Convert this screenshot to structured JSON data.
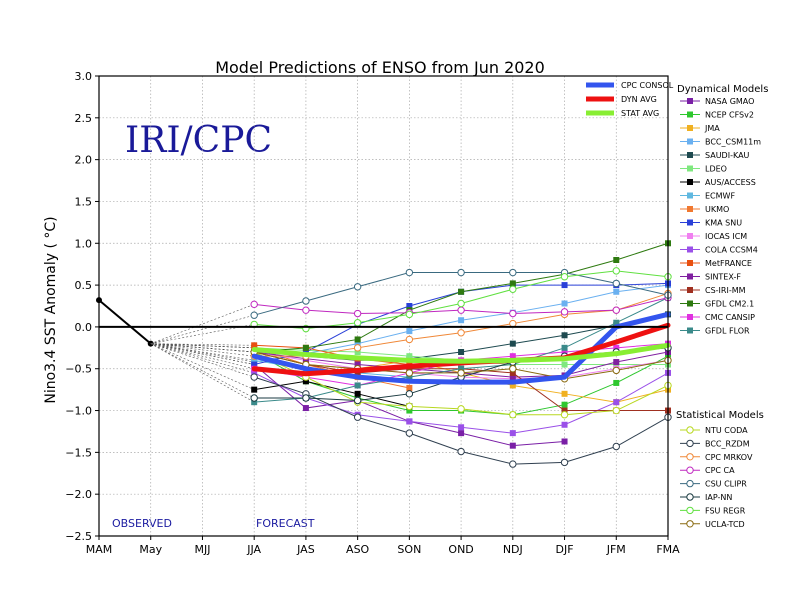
{
  "chart_data": {
    "type": "line",
    "title": "Model Predictions of ENSO from Jun 2020",
    "xlabel": "",
    "ylabel": "Nino3.4 SST Anomaly ( °C)",
    "ylim": [
      -2.5,
      3.0
    ],
    "yticks": [
      "3.0",
      "2.5",
      "2.0",
      "1.5",
      "1.0",
      "0.5",
      "0.0",
      "−0.5",
      "−1.0",
      "−1.5",
      "−2.0",
      "−2.5"
    ],
    "ytick_values": [
      3.0,
      2.5,
      2.0,
      1.5,
      1.0,
      0.5,
      0.0,
      -0.5,
      -1.0,
      -1.5,
      -2.0,
      -2.5
    ],
    "categories": [
      "MAM",
      "May",
      "MJJ",
      "JJA",
      "JAS",
      "ASO",
      "SON",
      "OND",
      "NDJ",
      "DJF",
      "JFM",
      "FMA"
    ],
    "grid": true,
    "watermark": "IRI/CPC",
    "observed_label": "OBSERVED",
    "forecast_label": "FORECAST",
    "observed": [
      0.32,
      -0.2
    ],
    "legend_top": [
      {
        "name": "CPC CONSOL",
        "color": "#3355ee"
      },
      {
        "name": "DYN AVG",
        "color": "#ee1111"
      },
      {
        "name": "STAT AVG",
        "color": "#88ee33"
      }
    ],
    "consensus": [
      {
        "name": "CPC CONSOL",
        "color": "#3355ee",
        "values": [
          -0.35,
          -0.5,
          -0.6,
          -0.65,
          -0.66,
          -0.66,
          -0.6,
          0.0,
          0.15
        ]
      },
      {
        "name": "DYN AVG",
        "color": "#ee1111",
        "values": [
          -0.5,
          -0.56,
          -0.52,
          -0.47,
          -0.43,
          -0.4,
          -0.37,
          -0.18,
          0.02
        ]
      },
      {
        "name": "STAT AVG",
        "color": "#88ee33",
        "values": [
          -0.27,
          -0.33,
          -0.37,
          -0.4,
          -0.41,
          -0.4,
          -0.38,
          -0.32,
          -0.22
        ]
      }
    ],
    "dynamical_title": "Dynamical Models",
    "dynamical": [
      {
        "name": "NASA GMAO",
        "color": "#7a1fa6",
        "values": [
          -0.45,
          -0.97,
          -0.88,
          -1.13,
          -1.27,
          -1.42,
          -1.37,
          null,
          null
        ]
      },
      {
        "name": "NCEP CFSv2",
        "color": "#2ec72e",
        "values": [
          -0.3,
          -0.65,
          -0.85,
          -1.0,
          -1.0,
          -1.05,
          -0.93,
          -0.67,
          -0.35
        ]
      },
      {
        "name": "JMA",
        "color": "#f0b020",
        "values": [
          -0.25,
          -0.45,
          -0.5,
          -0.4,
          -0.55,
          -0.7,
          -0.8,
          -0.9,
          -0.75
        ]
      },
      {
        "name": "BCC_CSM11m",
        "color": "#6ab0f0",
        "values": [
          -0.42,
          -0.32,
          -0.2,
          -0.05,
          0.08,
          0.17,
          0.28,
          0.42,
          0.5
        ]
      },
      {
        "name": "SAUDI-KAU",
        "color": "#1e4a50",
        "values": [
          -0.25,
          -0.35,
          -0.4,
          -0.38,
          -0.3,
          -0.2,
          -0.1,
          0.02,
          0.15
        ]
      },
      {
        "name": "LDEO",
        "color": "#7fe87f",
        "values": [
          -0.25,
          -0.28,
          -0.3,
          -0.35,
          -0.4,
          -0.45,
          -0.45,
          -0.45,
          -0.45
        ]
      },
      {
        "name": "AUS/ACCESS",
        "color": "#000000",
        "values": [
          -0.75,
          -0.65,
          -0.8,
          -0.95,
          null,
          null,
          null,
          null,
          null
        ]
      },
      {
        "name": "ECMWF",
        "color": "#60b8e0",
        "values": [
          -0.4,
          -0.5,
          -0.55,
          -0.6,
          null,
          null,
          null,
          null,
          null
        ]
      },
      {
        "name": "UKMO",
        "color": "#f07830",
        "values": [
          -0.25,
          -0.45,
          -0.6,
          -0.73,
          null,
          null,
          null,
          null,
          null
        ]
      },
      {
        "name": "KMA SNU",
        "color": "#2a40d8",
        "values": [
          -0.45,
          -0.3,
          0.03,
          0.25,
          0.42,
          0.5,
          0.5,
          0.5,
          0.52
        ]
      },
      {
        "name": "IOCAS ICM",
        "color": "#f080f0",
        "values": [
          -0.3,
          -0.4,
          -0.5,
          -0.55,
          -0.6,
          -0.62,
          -0.6,
          -0.5,
          -0.4
        ]
      },
      {
        "name": "COLA CCSM4",
        "color": "#9a50e8",
        "values": [
          -0.55,
          -0.85,
          -1.05,
          -1.13,
          -1.2,
          -1.27,
          -1.17,
          -0.9,
          -0.55
        ]
      },
      {
        "name": "MetFRANCE",
        "color": "#e85010",
        "values": [
          -0.22,
          -0.25,
          -0.38,
          -0.45,
          null,
          null,
          null,
          null,
          null
        ]
      },
      {
        "name": "SINTEX-F",
        "color": "#8020a0",
        "values": [
          -0.3,
          -0.38,
          -0.45,
          -0.5,
          -0.55,
          -0.6,
          -0.58,
          -0.42,
          -0.3
        ]
      },
      {
        "name": "CS-IRI-MM",
        "color": "#a03020",
        "values": [
          -0.3,
          -0.45,
          -0.55,
          -0.5,
          -0.5,
          -0.55,
          -1.0,
          -1.0,
          -1.0
        ]
      },
      {
        "name": "GFDL CM2.1",
        "color": "#2e7a10",
        "values": [
          -0.3,
          -0.25,
          -0.15,
          0.2,
          0.42,
          0.52,
          0.63,
          0.8,
          1.0
        ]
      },
      {
        "name": "CMC CANSIP",
        "color": "#e030e0",
        "values": [
          -0.5,
          -0.6,
          -0.7,
          -0.55,
          -0.4,
          -0.35,
          -0.3,
          -0.25,
          -0.2
        ]
      },
      {
        "name": "GFDL FLOR",
        "color": "#3a8a8a",
        "values": [
          -0.9,
          -0.85,
          -0.7,
          -0.6,
          -0.5,
          -0.45,
          -0.25,
          0.05,
          0.35
        ]
      }
    ],
    "statistical_title": "Statistical Models",
    "statistical": [
      {
        "name": "NTU CODA",
        "color": "#b8d820",
        "values": [
          -0.3,
          -0.6,
          -0.9,
          -0.95,
          -0.98,
          -1.05,
          -1.05,
          -1.0,
          -0.7
        ]
      },
      {
        "name": "BCC_RZDM",
        "color": "#304050",
        "values": [
          -0.6,
          -0.8,
          -1.08,
          -1.27,
          -1.49,
          -1.64,
          -1.62,
          -1.43,
          -1.08
        ]
      },
      {
        "name": "CPC MRKOV",
        "color": "#f08838",
        "values": [
          -0.35,
          -0.35,
          -0.25,
          -0.15,
          -0.07,
          0.04,
          0.15,
          0.2,
          0.4
        ]
      },
      {
        "name": "CPC CA",
        "color": "#c028c0",
        "values": [
          0.27,
          0.2,
          0.16,
          0.17,
          0.2,
          0.16,
          0.18,
          0.2,
          0.35
        ]
      },
      {
        "name": "CSU CLIPR",
        "color": "#3a6a80",
        "values": [
          0.14,
          0.31,
          0.48,
          0.65,
          0.65,
          0.65,
          0.65,
          0.52,
          0.38
        ]
      },
      {
        "name": "IAP-NN",
        "color": "#1a3a40",
        "values": [
          -0.85,
          -0.85,
          -0.88,
          -0.8,
          -0.6,
          -0.42,
          -0.35,
          -0.3,
          -0.25
        ]
      },
      {
        "name": "FSU REGR",
        "color": "#60e040",
        "values": [
          0.03,
          -0.02,
          0.05,
          0.15,
          0.28,
          0.45,
          0.6,
          0.67,
          0.6
        ]
      },
      {
        "name": "UCLA-TCD",
        "color": "#8a6a10",
        "values": [
          -0.3,
          -0.45,
          -0.5,
          -0.55,
          -0.55,
          -0.5,
          -0.62,
          -0.52,
          -0.4
        ]
      }
    ]
  }
}
